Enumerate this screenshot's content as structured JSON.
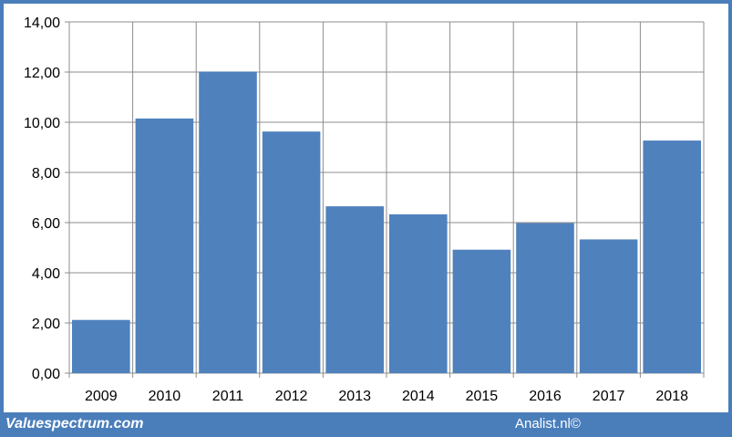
{
  "chart_data": {
    "type": "bar",
    "categories": [
      "2009",
      "2010",
      "2011",
      "2012",
      "2013",
      "2014",
      "2015",
      "2016",
      "2017",
      "2018"
    ],
    "values": [
      2.12,
      10.15,
      12.02,
      9.63,
      6.65,
      6.33,
      4.92,
      5.98,
      5.33,
      9.27
    ],
    "ylim": [
      0,
      14
    ],
    "yticks": [
      "0,00",
      "2,00",
      "4,00",
      "6,00",
      "8,00",
      "10,00",
      "12,00",
      "14,00"
    ],
    "grid": true,
    "bar_color": "#4f81bd"
  },
  "footer": {
    "site": "Valuespectrum.com",
    "credit": "Analist.nl©"
  },
  "colors": {
    "background": "#4a7ebb",
    "grid": "#8c8c8c"
  }
}
